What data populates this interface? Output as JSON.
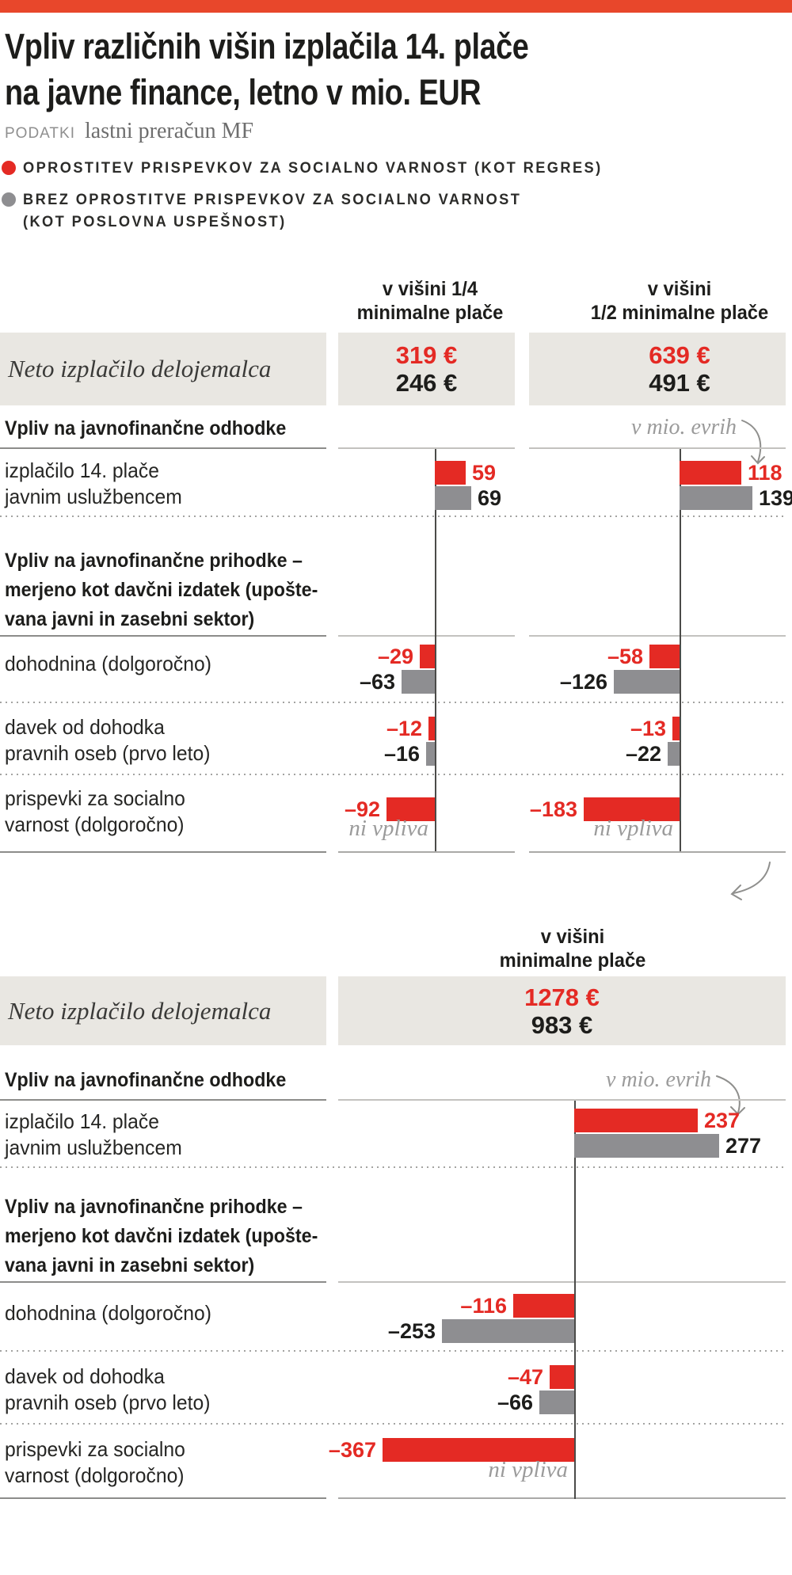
{
  "page": {
    "title_lines": [
      "Vpliv različnih višin izplačila 14. plače",
      "na javne finance, letno v mio. EUR"
    ],
    "source_label": "PODATKI",
    "source_value": "lastni preračun MF"
  },
  "legend": {
    "items": [
      {
        "color": "#e42a24",
        "lines": [
          "OPROSTITEV PRISPEVKOV ZA SOCIALNO VARNOST (KOT REGRES)"
        ]
      },
      {
        "color": "#8e8e91",
        "lines": [
          "BREZ OPROSTITVE PRISPEVKOV ZA SOCIALNO VARNOST",
          "(KOT POSLOVNA USPEŠNOST)"
        ]
      }
    ]
  },
  "labels": {
    "net_row": "Neto izplačilo delojemalca",
    "expenses_header": "Vpliv na javnofinančne odhodke",
    "revenues_header_lines": [
      "Vpliv na javnofinančne prihodke –",
      "merjeno kot davčni izdatek (upošte-",
      "vana javni in zasebni sektor)"
    ],
    "unit_note": "v mio. evrih",
    "no_impact": "ni vpliva"
  },
  "colors": {
    "accent_red": "#e42a24",
    "bar_gray": "#8e8e91",
    "top_bar": "#e8472b",
    "band_bg": "#e9e7e2"
  },
  "chart_data": {
    "type": "bar",
    "orientation": "horizontal",
    "title": "Vpliv različnih višin izplačila 14. plače na javne finance, letno v mio. EUR",
    "unit": "mio EUR letno",
    "unit_note": "v mio. evrih",
    "series": [
      {
        "name": "oprostitev prispevkov za socialno varnost (kot regres)",
        "color": "#e42a24"
      },
      {
        "name": "brez oprostitve prispevkov za socialno varnost (kot poslovna uspešnost)",
        "color": "#8e8e91"
      }
    ],
    "row_labels": [
      [
        "izplačilo 14. plače",
        "javnim uslužbencem"
      ],
      [
        "dohodnina (dolgoročno)"
      ],
      [
        "davek od dohodka",
        "pravnih oseb (prvo leto)"
      ],
      [
        "prispevki za socialno",
        "varnost (dolgoročno)"
      ]
    ],
    "scenarios": [
      {
        "title_lines": [
          "v višini 1/4",
          "minimalne plače"
        ],
        "net": {
          "red": "319 €",
          "gray": "246 €"
        },
        "values": [
          {
            "red": 59,
            "gray": 69
          },
          {
            "red": -29,
            "gray": -63
          },
          {
            "red": -12,
            "gray": -16
          },
          {
            "red": -92,
            "gray": null
          }
        ]
      },
      {
        "title_lines": [
          "v višini",
          "1/2 minimalne plače"
        ],
        "net": {
          "red": "639 €",
          "gray": "491 €"
        },
        "values": [
          {
            "red": 118,
            "gray": 139
          },
          {
            "red": -58,
            "gray": -126
          },
          {
            "red": -13,
            "gray": -22
          },
          {
            "red": -183,
            "gray": null
          }
        ]
      },
      {
        "title_lines": [
          "v višini",
          "minimalne plače"
        ],
        "net": {
          "red": "1278 €",
          "gray": "983 €"
        },
        "values": [
          {
            "red": 237,
            "gray": 277
          },
          {
            "red": -116,
            "gray": -253
          },
          {
            "red": -47,
            "gray": -66
          },
          {
            "red": -367,
            "gray": null
          }
        ]
      }
    ]
  }
}
